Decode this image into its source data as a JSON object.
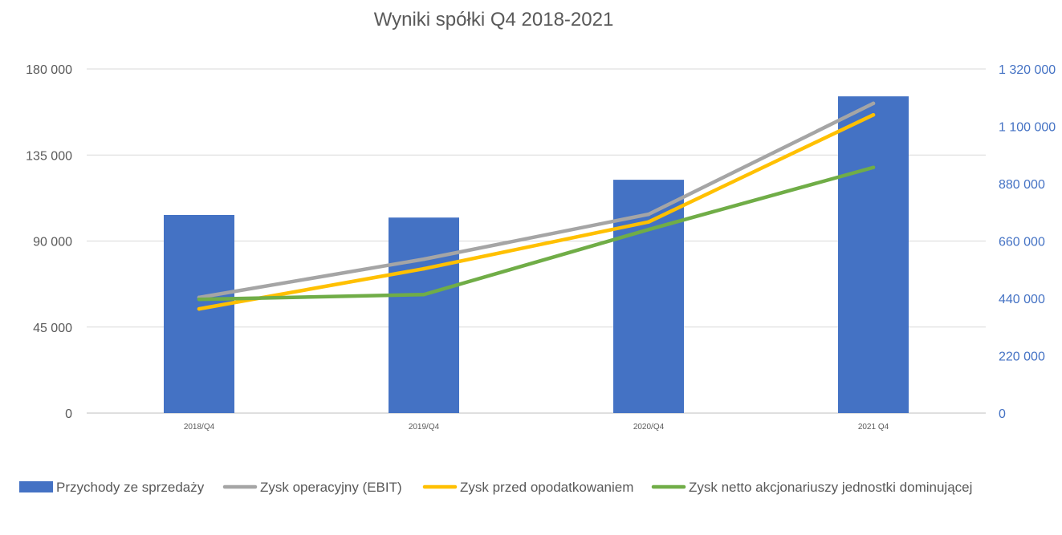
{
  "chart_data": {
    "type": "bar",
    "title": "Wyniki spółki Q4 2018-2021",
    "categories": [
      "2018/Q4",
      "2019/Q4",
      "2020/Q4",
      "2021 Q4"
    ],
    "left_axis": {
      "min": 0,
      "max": 180000,
      "ticks": [
        0,
        45000,
        90000,
        135000,
        180000
      ],
      "tick_labels": [
        "0",
        "45 000",
        "90 000",
        "135 000",
        "180 000"
      ]
    },
    "right_axis": {
      "min": 0,
      "max": 1320000,
      "ticks": [
        0,
        220000,
        440000,
        660000,
        880000,
        1100000,
        1320000
      ],
      "tick_labels": [
        "0",
        "220 000",
        "440 000",
        "660 000",
        "880 000",
        "1 100 000",
        "1 320 000"
      ]
    },
    "grid": true,
    "legend_position": "bottom",
    "series": [
      {
        "name": "Przychody ze sprzedaży",
        "type": "bar",
        "axis": "right",
        "color": "#4472c4",
        "values": [
          760000,
          750000,
          895000,
          1215000
        ]
      },
      {
        "name": "Zysk operacyjny (EBIT)",
        "type": "line",
        "axis": "left",
        "color": "#a5a5a5",
        "values": [
          60500,
          80500,
          104000,
          162000
        ]
      },
      {
        "name": "Zysk przed opodatkowaniem",
        "type": "line",
        "axis": "left",
        "color": "#ffc000",
        "values": [
          54500,
          75500,
          100000,
          156000
        ]
      },
      {
        "name": "Zysk netto akcjonariuszy jednostki dominującej",
        "type": "line",
        "axis": "left",
        "color": "#70ad47",
        "values": [
          59500,
          62000,
          96000,
          128500
        ]
      }
    ]
  }
}
